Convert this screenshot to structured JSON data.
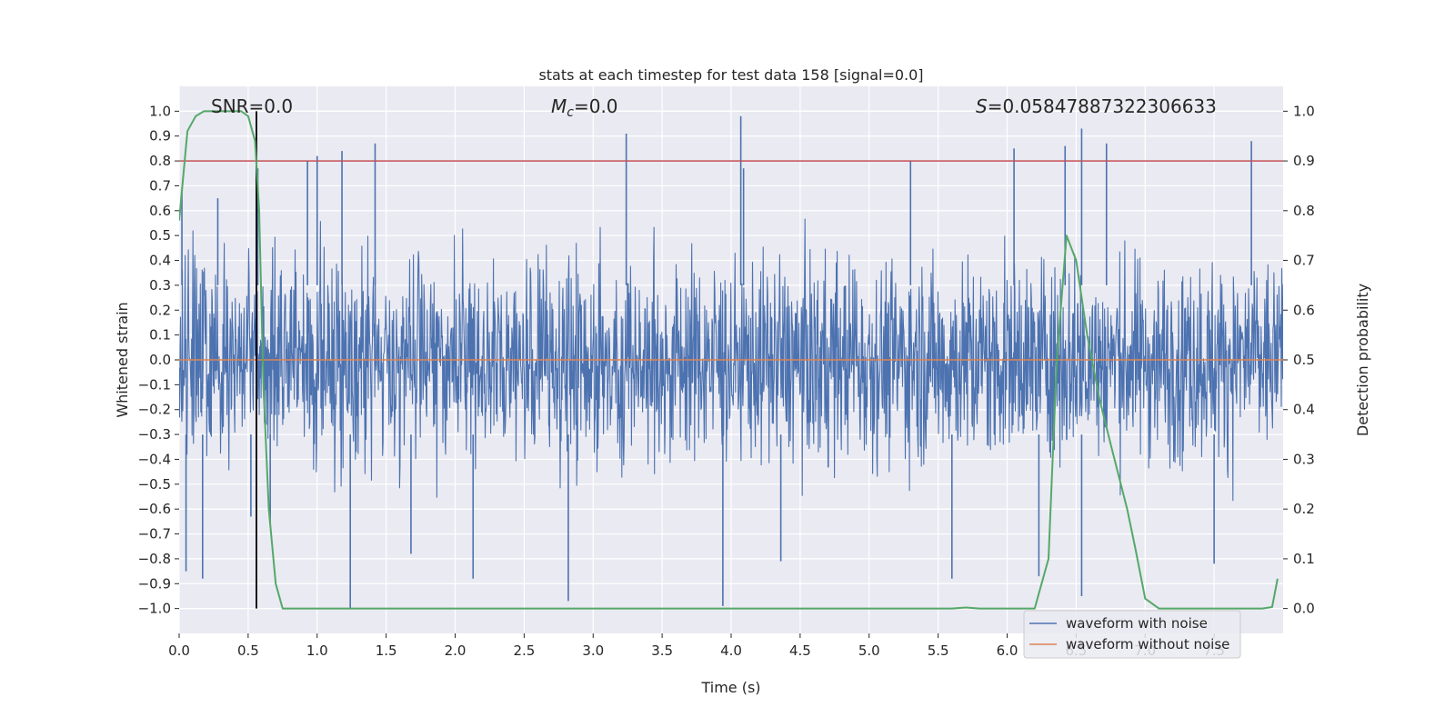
{
  "chart_data": {
    "type": "line",
    "title": "stats at each timestep for test data 158 [signal=0.0]",
    "xlabel": "Time (s)",
    "ylabel": "Whitened strain",
    "y2label": "Detection probability",
    "xlim": [
      0.0,
      8.0
    ],
    "ylim": [
      -1.1,
      1.1
    ],
    "y2lim": [
      -0.05,
      1.05
    ],
    "x_ticks": [
      0.0,
      0.5,
      1.0,
      1.5,
      2.0,
      2.5,
      3.0,
      3.5,
      4.0,
      4.5,
      5.0,
      5.5,
      6.0,
      6.5,
      7.0,
      7.5
    ],
    "x_tick_labels": [
      "0.0",
      "0.5",
      "1.0",
      "1.5",
      "2.0",
      "2.5",
      "3.0",
      "3.5",
      "4.0",
      "4.5",
      "5.0",
      "5.5",
      "6.0",
      "6.5",
      "7.0",
      "7.5"
    ],
    "y_ticks": [
      1.0,
      0.9,
      0.8,
      0.7,
      0.6,
      0.5,
      0.4,
      0.3,
      0.2,
      0.1,
      0.0,
      -0.1,
      -0.2,
      -0.3,
      -0.4,
      -0.5,
      -0.6,
      -0.7,
      -0.8,
      -0.9,
      -1.0
    ],
    "y_tick_labels": [
      "1.0",
      "0.9",
      "0.8",
      "0.7",
      "0.6",
      "0.5",
      "0.4",
      "0.3",
      "0.2",
      "0.1",
      "0.0",
      "−0.1",
      "−0.2",
      "−0.3",
      "−0.4",
      "−0.5",
      "−0.6",
      "−0.7",
      "−0.8",
      "−0.9",
      "−1.0"
    ],
    "y2_ticks": [
      1.0,
      0.9,
      0.8,
      0.7,
      0.6,
      0.5,
      0.4,
      0.3,
      0.2,
      0.1,
      0.0
    ],
    "y2_tick_labels": [
      "1.0",
      "0.9",
      "0.8",
      "0.7",
      "0.6",
      "0.5",
      "0.4",
      "0.3",
      "0.2",
      "0.1",
      "0.0"
    ],
    "annotations": {
      "snr": "SNR=0.0",
      "mc_symbol": "M",
      "mc_sub": "c",
      "mc_value": "=0.0",
      "s_symbol": "S",
      "s_value": "=0.05847887322306633"
    },
    "series": [
      {
        "name": "waveform with noise",
        "color": "#4c72b0",
        "style": "dense noise, amplitude ~0.35 with spikes up to ~0.97 / down to ~-1.0",
        "x_range": [
          0.0,
          8.0
        ],
        "spikes": [
          [
            0.02,
            0.68
          ],
          [
            0.05,
            -0.85
          ],
          [
            0.17,
            -0.88
          ],
          [
            0.28,
            0.65
          ],
          [
            0.52,
            -0.63
          ],
          [
            0.57,
            0.77
          ],
          [
            0.66,
            -0.66
          ],
          [
            0.93,
            0.8
          ],
          [
            1.0,
            0.82
          ],
          [
            1.24,
            -1.0
          ],
          [
            1.18,
            0.84
          ],
          [
            1.42,
            0.87
          ],
          [
            1.68,
            -0.78
          ],
          [
            2.13,
            -0.88
          ],
          [
            2.82,
            -0.97
          ],
          [
            3.24,
            0.91
          ],
          [
            3.94,
            -0.99
          ],
          [
            4.07,
            0.98
          ],
          [
            4.09,
            0.77
          ],
          [
            4.36,
            -0.81
          ],
          [
            5.3,
            0.8
          ],
          [
            5.6,
            -0.88
          ],
          [
            6.05,
            0.85
          ],
          [
            6.23,
            -0.87
          ],
          [
            6.42,
            0.86
          ],
          [
            6.54,
            0.93
          ],
          [
            6.54,
            -0.95
          ],
          [
            6.72,
            0.87
          ],
          [
            7.5,
            -0.82
          ],
          [
            7.77,
            0.88
          ]
        ]
      },
      {
        "name": "waveform without noise",
        "color": "#dd8452",
        "x": [
          0.0,
          8.0
        ],
        "y": [
          0.0,
          0.0
        ]
      },
      {
        "name": "detection probability",
        "color": "#55a868",
        "axis": "right",
        "x": [
          0.0,
          0.06,
          0.12,
          0.18,
          0.25,
          0.35,
          0.45,
          0.5,
          0.55,
          0.58,
          0.61,
          0.65,
          0.7,
          0.75,
          0.8,
          1.0,
          2.0,
          3.0,
          4.0,
          5.0,
          5.6,
          5.7,
          5.8,
          6.0,
          6.2,
          6.3,
          6.36,
          6.43,
          6.5,
          6.58,
          6.67,
          6.76,
          6.87,
          6.93,
          7.0,
          7.1,
          7.5,
          7.75,
          7.85,
          7.92,
          7.96
        ],
        "y": [
          0.78,
          0.96,
          0.99,
          1.0,
          1.0,
          1.0,
          1.0,
          0.99,
          0.94,
          0.8,
          0.45,
          0.2,
          0.05,
          0.0,
          0.0,
          0.0,
          0.0,
          0.0,
          0.0,
          0.0,
          0.0,
          0.002,
          0.0,
          0.0,
          0.0,
          0.1,
          0.5,
          0.75,
          0.7,
          0.55,
          0.42,
          0.32,
          0.2,
          0.12,
          0.02,
          0.0,
          0.0,
          0.0,
          0.0,
          0.003,
          0.06
        ]
      }
    ],
    "hlines_right": [
      {
        "name": "threshold",
        "y": 0.9,
        "color": "#c44e52"
      }
    ],
    "vlines": [
      {
        "name": "marker",
        "x": 0.56,
        "y2_range": [
          0.0,
          1.0
        ],
        "color": "#000000"
      }
    ],
    "grid": true,
    "background": "#eaeaf2",
    "legend_location": "lower-right",
    "legend": [
      "waveform with noise",
      "waveform without noise"
    ]
  }
}
